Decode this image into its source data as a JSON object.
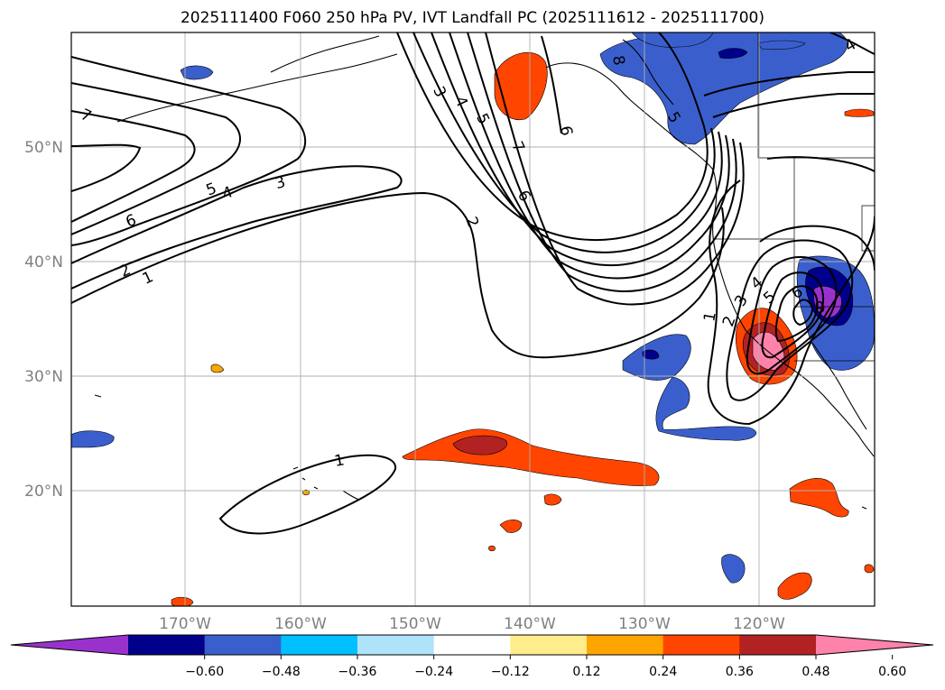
{
  "title": "2025111400 F060 250 hPa PV, IVT Landfall PC (2025111612 - 2025111700)",
  "map": {
    "lon_range": [
      -180,
      -110
    ],
    "lat_range": [
      10,
      60
    ],
    "lat_labels": [
      "50°N",
      "40°N",
      "30°N",
      "20°N"
    ],
    "lon_labels": [
      "170°W",
      "160°W",
      "150°W",
      "140°W",
      "130°W",
      "120°W"
    ],
    "grid": true
  },
  "contour_labels": [
    "7",
    "6",
    "5",
    "4",
    "3",
    "2",
    "1",
    "3",
    "4",
    "5",
    "7",
    "6",
    "6",
    "2",
    "8",
    "1",
    "2",
    "3",
    "4",
    "5",
    "6",
    "9",
    "1",
    "4",
    "5"
  ],
  "colorbar": {
    "ticks": [
      "−0.60",
      "−0.48",
      "−0.36",
      "−0.24",
      "−0.12",
      "0.12",
      "0.24",
      "0.36",
      "0.48",
      "0.60"
    ],
    "colors": [
      "#9932cc",
      "#00008b",
      "#3a5fcd",
      "#00bfff",
      "#aee3fa",
      "#ffffff",
      "#ffec8b",
      "#ffa500",
      "#ff4500",
      "#b22222",
      "#ff82ab"
    ]
  }
}
